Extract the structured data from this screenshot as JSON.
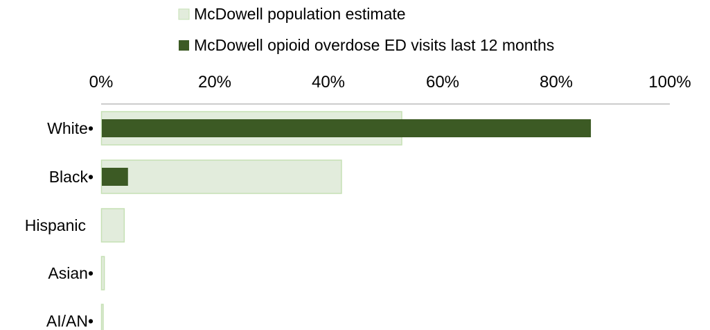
{
  "chart_data": {
    "type": "bar",
    "orientation": "horizontal",
    "axis_position": "top",
    "legend_placement": "top",
    "grid": false,
    "title": "",
    "xlabel": "",
    "ylabel": "",
    "xlim": [
      0,
      100
    ],
    "ticks": [
      "0%",
      "20%",
      "40%",
      "60%",
      "80%",
      "100%"
    ],
    "categories": [
      "White•",
      "Black•",
      "Hispanic",
      "Asian•",
      "AI/AN•"
    ],
    "series": [
      {
        "name": "McDowell population estimate",
        "color": "#e2ecdc",
        "border": "#c5e0b4",
        "values": [
          52.8,
          42.2,
          4.0,
          0.5,
          0.3
        ]
      },
      {
        "name": "McDowell opioid overdose ED visits last 12 months",
        "color": "#3c5a24",
        "border": "#3c5a24",
        "values": [
          86.0,
          4.6,
          0,
          0,
          0
        ]
      }
    ]
  }
}
